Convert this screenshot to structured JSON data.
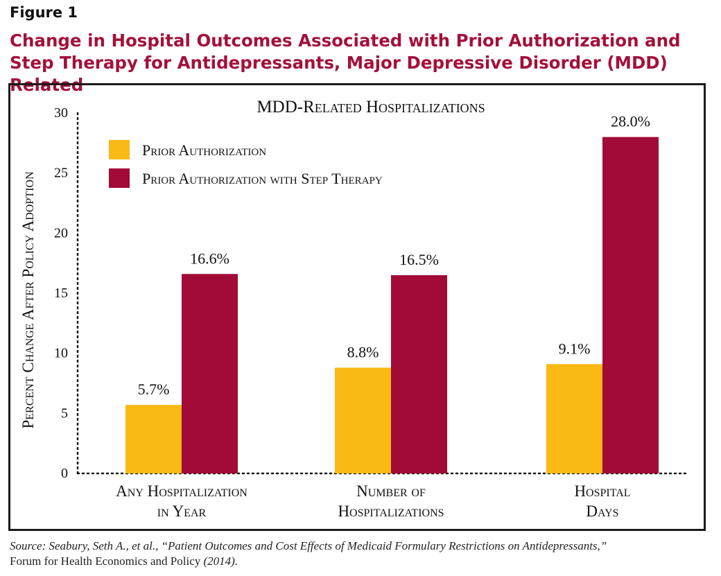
{
  "figure_label": "Figure 1",
  "figure_title": "Change in Hospital Outcomes Associated with Prior Authorization and Step Therapy for Antidepressants, Major Depressive Disorder (MDD) Related",
  "source": {
    "prefix": "Source: Seabury, Seth A., et al., “Patient Outcomes and Cost Effects of Medicaid Formulary Restrictions on Antidepressants,”",
    "journal": "Forum for Health Economics and Policy",
    "year": "(2014)."
  },
  "colors": {
    "title": "#a3113a",
    "prior_authorization": "#fbb915",
    "prior_authorization_step": "#a20b37"
  },
  "chart_data": {
    "type": "bar",
    "title": "MDD-Related Hospitalizations",
    "ylabel": "Percent Change After Policy Adoption",
    "xlabel": "",
    "ylim": [
      0,
      30
    ],
    "yticks": [
      0,
      5,
      10,
      15,
      20,
      25,
      30
    ],
    "grid": false,
    "legend_position": "top-left",
    "categories": [
      [
        "Any Hospitalization",
        "in Year"
      ],
      [
        "Number of",
        "Hospitalizations"
      ],
      [
        "Hospital",
        "Days"
      ]
    ],
    "series": [
      {
        "name": "Prior Authorization",
        "color": "#fbb915",
        "values": [
          5.7,
          8.8,
          9.1
        ],
        "labels": [
          "5.7%",
          "8.8%",
          "9.1%"
        ]
      },
      {
        "name": "Prior Authorization with Step Therapy",
        "color": "#a20b37",
        "values": [
          16.6,
          16.5,
          28.0
        ],
        "labels": [
          "16.6%",
          "16.5%",
          "28.0%"
        ]
      }
    ]
  }
}
